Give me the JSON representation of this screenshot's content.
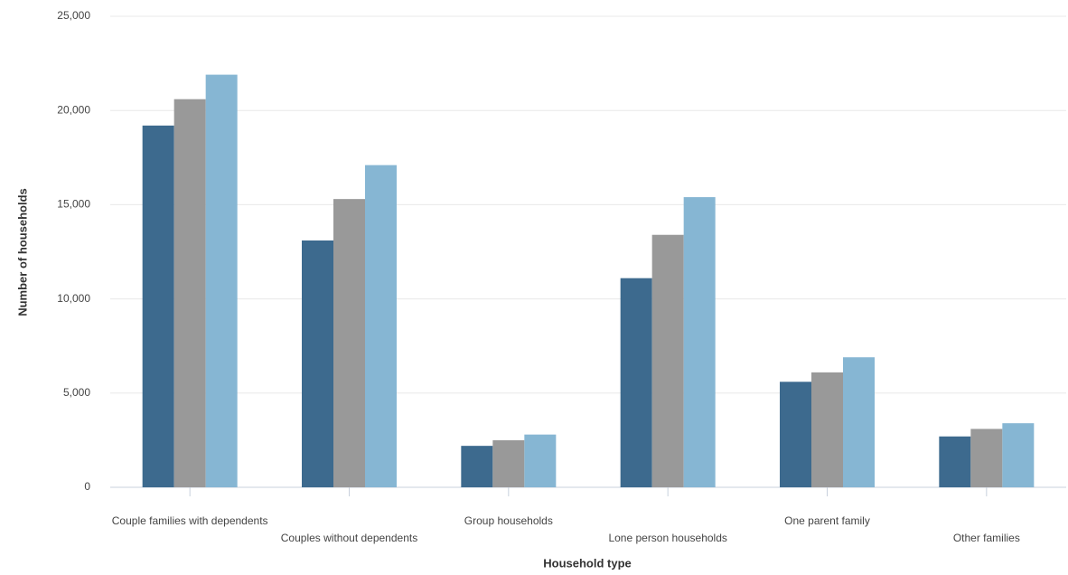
{
  "chart_data": {
    "type": "bar",
    "x_label": "Household type",
    "y_label": "Number of households",
    "categories": [
      "Couple families with dependents",
      "Couples without dependents",
      "Group households",
      "Lone person households",
      "One parent family",
      "Other families"
    ],
    "series": [
      {
        "color": "#3d6a8e",
        "values": [
          19200,
          13100,
          2200,
          11100,
          5600,
          2700
        ]
      },
      {
        "color": "#999999",
        "values": [
          20600,
          15300,
          2500,
          13400,
          6100,
          3100
        ]
      },
      {
        "color": "#86b6d3",
        "values": [
          21900,
          17100,
          2800,
          15400,
          6900,
          3400
        ]
      }
    ],
    "ylim": [
      0,
      25000
    ],
    "yticks": [
      0,
      {
        "value": 5000,
        "label": "5,000"
      },
      {
        "value": 10000,
        "label": "10,000"
      },
      {
        "value": 15000,
        "label": "15,000"
      },
      {
        "value": 20000,
        "label": "20,000"
      },
      {
        "value": 25000,
        "label": "25,000"
      }
    ],
    "grid": true
  }
}
